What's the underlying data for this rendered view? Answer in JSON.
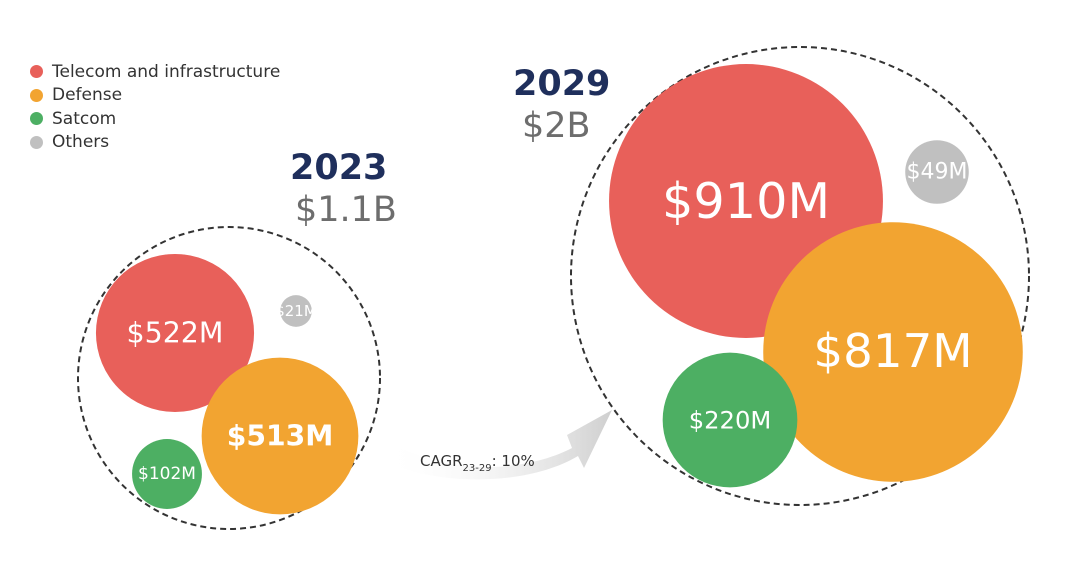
{
  "legend": {
    "items": [
      {
        "label": "Telecom and infrastructure",
        "color": "#e8605a"
      },
      {
        "label": "Defense",
        "color": "#f2a431"
      },
      {
        "label": "Satcom",
        "color": "#4daf63"
      },
      {
        "label": "Others",
        "color": "#c0c0c0"
      }
    ]
  },
  "chart_data": {
    "type": "bubble",
    "groups": [
      {
        "year": "2023",
        "total": "$1.1B",
        "bubbles": [
          {
            "category": "Telecom and infrastructure",
            "value": 522,
            "label": "$522M",
            "color": "#e8605a"
          },
          {
            "category": "Defense",
            "value": 513,
            "label": "$513M",
            "color": "#f2a431"
          },
          {
            "category": "Satcom",
            "value": 102,
            "label": "$102M",
            "color": "#4daf63"
          },
          {
            "category": "Others",
            "value": 21,
            "label": "$21M",
            "color": "#c0c0c0"
          }
        ]
      },
      {
        "year": "2029",
        "total": "$2B",
        "bubbles": [
          {
            "category": "Telecom and infrastructure",
            "value": 910,
            "label": "$910M",
            "color": "#e8605a"
          },
          {
            "category": "Defense",
            "value": 817,
            "label": "$817M",
            "color": "#f2a431"
          },
          {
            "category": "Satcom",
            "value": 220,
            "label": "$220M",
            "color": "#4daf63"
          },
          {
            "category": "Others",
            "value": 49,
            "label": "$49M",
            "color": "#c0c0c0"
          }
        ]
      }
    ],
    "annotation": {
      "prefix": "CAGR",
      "subscript": "23-29",
      "suffix": ": 10%"
    }
  }
}
